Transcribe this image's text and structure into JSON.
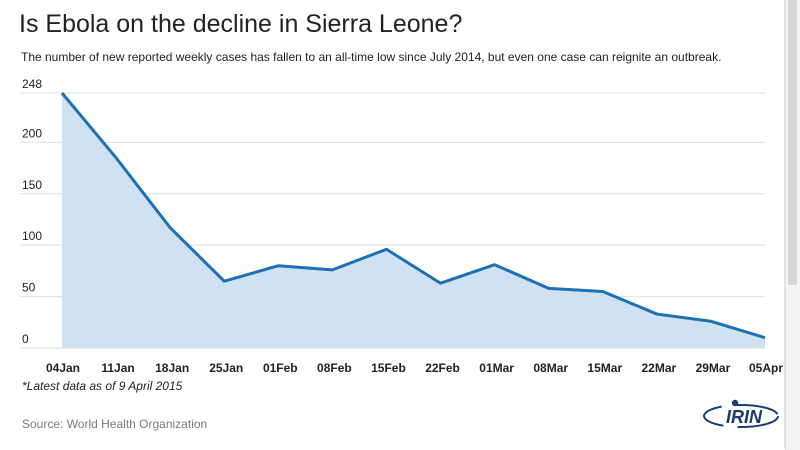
{
  "title": "Is Ebola on the decline in Sierra Leone?",
  "subtitle": "The number of new reported weekly cases has fallen to an all-time low since July 2014, but even one case can reignite an outbreak.",
  "note": "*Latest data as of 9 April 2015",
  "source": "Source: World Health Organization",
  "logo_text": "IRIN",
  "colors": {
    "line": "#1f6fb5",
    "area": "#cfe2f3",
    "grid": "#dedede",
    "axis_text": "#222222"
  },
  "chart_data": {
    "type": "area",
    "title": "Is Ebola on the decline in Sierra Leone?",
    "xlabel": "",
    "ylabel": "",
    "categories": [
      "04Jan",
      "11Jan",
      "18Jan",
      "25Jan",
      "01Feb",
      "08Feb",
      "15Feb",
      "22Feb",
      "01Mar",
      "08Mar",
      "15Mar",
      "22Mar",
      "29Mar",
      "05Apr"
    ],
    "series": [
      {
        "values": [
          248,
          185,
          117,
          65,
          80,
          76,
          96,
          63,
          81,
          58,
          55,
          33,
          26,
          10
        ]
      }
    ],
    "y_ticks": [
      0,
      50,
      100,
      150,
      200,
      248
    ],
    "ylim": [
      0,
      248
    ],
    "grid": true,
    "legend": "none"
  }
}
